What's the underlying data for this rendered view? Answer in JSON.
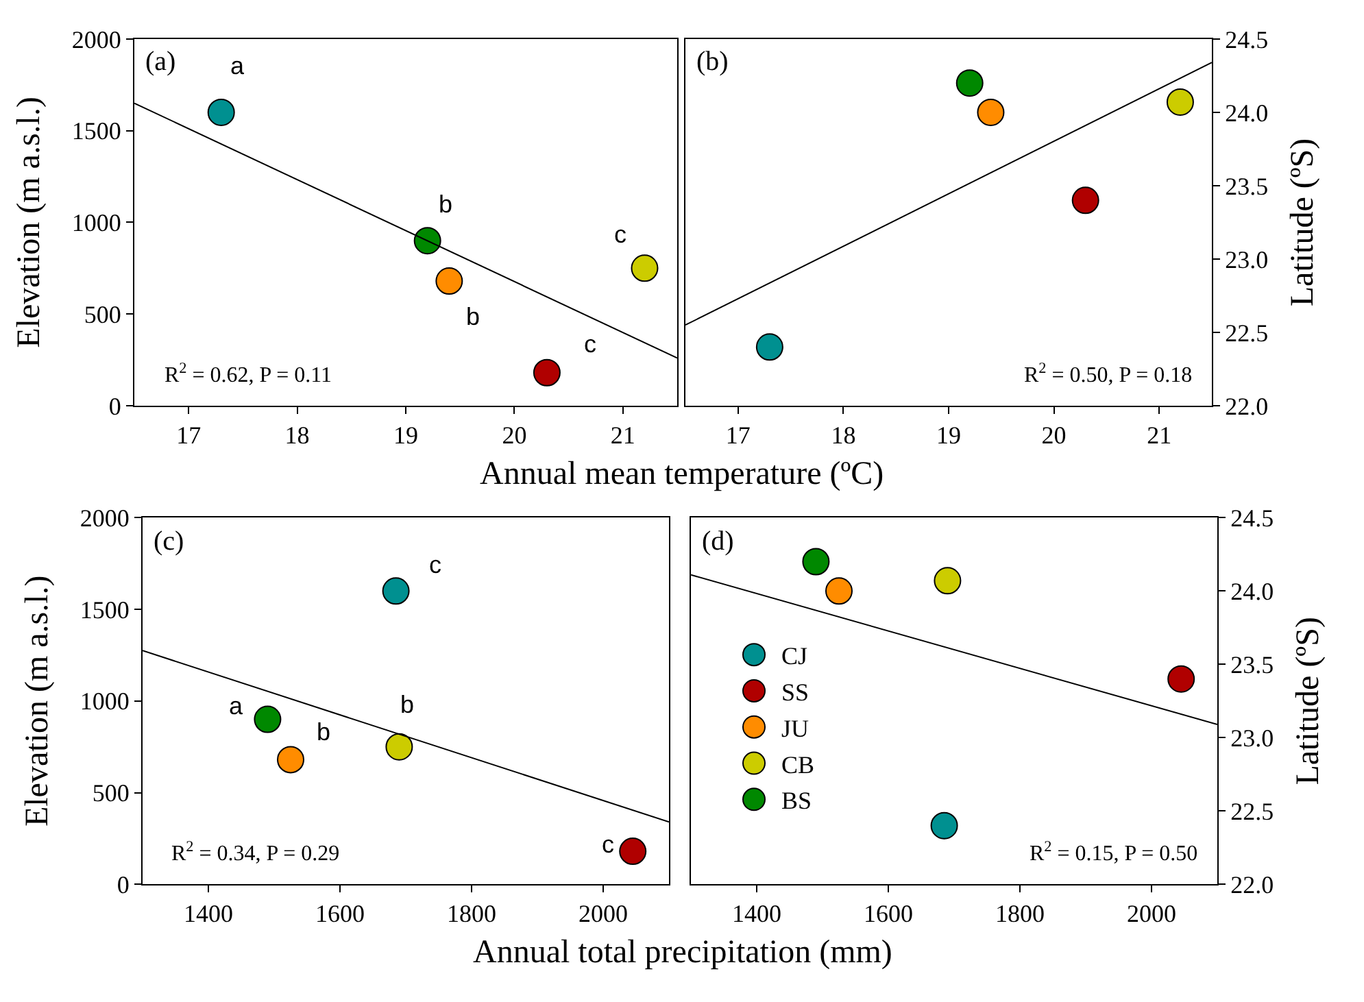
{
  "chart_data": [
    {
      "type": "scatter",
      "title": "(a)",
      "xlabel": "Annual mean temperature (ºC)",
      "ylabel": "Elevation (m a.s.l.)",
      "xlim": [
        16.5,
        21.5
      ],
      "xticks": [
        17,
        18,
        19,
        20,
        21
      ],
      "ylim": [
        0,
        2000
      ],
      "yticks": [
        0,
        500,
        1000,
        1500,
        2000
      ],
      "legend": false,
      "series": [
        {
          "color": "#009090",
          "marker": "circle",
          "x": [
            17.3
          ],
          "values": [
            1600
          ]
        },
        {
          "color": "#b00000",
          "marker": "circle",
          "x": [
            20.3
          ],
          "values": [
            180
          ]
        },
        {
          "color": "#ff8c00",
          "marker": "circle",
          "x": [
            19.4
          ],
          "values": [
            680
          ]
        },
        {
          "color": "#cccc00",
          "marker": "circle",
          "x": [
            21.2
          ],
          "values": [
            750
          ]
        },
        {
          "color": "#008800",
          "marker": "circle",
          "x": [
            19.2
          ],
          "values": [
            900
          ]
        },
        {
          "type": "line",
          "color": "#000000",
          "x": [
            16.5,
            21.5
          ],
          "values": [
            1650,
            260
          ]
        }
      ],
      "annotations": [
        "R$^{2}$ = 0.62, P = 0.11",
        {
          "text": "a",
          "x": 17.3,
          "y": 1600
        },
        {
          "text": "b",
          "x": 19.2,
          "y": 900
        },
        {
          "text": "b",
          "x": 19.4,
          "y": 680
        },
        {
          "text": "c",
          "x": 21.2,
          "y": 750
        },
        {
          "text": "c",
          "x": 20.3,
          "y": 180
        }
      ]
    },
    {
      "type": "scatter",
      "title": "(b)",
      "ylabel": "Latitude (ºS)",
      "xlim": [
        16.5,
        21.5
      ],
      "xticks": [
        17,
        18,
        19,
        20,
        21
      ],
      "ylim": [
        22.0,
        24.5
      ],
      "yticks": [
        {
          "value": 22.0,
          "label": "22.0"
        },
        {
          "value": 22.5,
          "label": "22.5"
        },
        {
          "value": 23.0,
          "label": "23.0"
        },
        {
          "value": 23.5,
          "label": "23.5"
        },
        {
          "value": 24.0,
          "label": "24.0"
        },
        {
          "value": 24.5,
          "label": "24.5"
        }
      ],
      "legend": false,
      "series": [
        {
          "color": "#009090",
          "marker": "circle",
          "x": [
            17.3
          ],
          "values": [
            22.4
          ]
        },
        {
          "color": "#b00000",
          "marker": "circle",
          "x": [
            20.3
          ],
          "values": [
            23.4
          ]
        },
        {
          "color": "#ff8c00",
          "marker": "circle",
          "x": [
            19.4
          ],
          "values": [
            24.0
          ]
        },
        {
          "color": "#cccc00",
          "marker": "circle",
          "x": [
            21.2
          ],
          "values": [
            24.07
          ]
        },
        {
          "color": "#008800",
          "marker": "circle",
          "x": [
            19.2
          ],
          "values": [
            24.2
          ]
        },
        {
          "type": "line",
          "color": "#000000",
          "x": [
            16.5,
            21.5
          ],
          "values": [
            22.55,
            24.34
          ]
        }
      ],
      "annotations": [
        "R$^{2}$ = 0.50, P = 0.18"
      ]
    },
    {
      "type": "scatter",
      "title": "(c)",
      "xlabel": "Annual total precipitation (mm)",
      "ylabel": "Elevation (m a.s.l.)",
      "xlim": [
        1300,
        2100
      ],
      "xticks": [
        1400,
        1600,
        1800,
        2000
      ],
      "ylim": [
        0,
        2000
      ],
      "yticks": [
        0,
        500,
        1000,
        1500,
        2000
      ],
      "legend": false,
      "series": [
        {
          "color": "#009090",
          "marker": "circle",
          "x": [
            1685
          ],
          "values": [
            1600
          ]
        },
        {
          "color": "#b00000",
          "marker": "circle",
          "x": [
            2045
          ],
          "values": [
            180
          ]
        },
        {
          "color": "#ff8c00",
          "marker": "circle",
          "x": [
            1525
          ],
          "values": [
            680
          ]
        },
        {
          "color": "#cccc00",
          "marker": "circle",
          "x": [
            1690
          ],
          "values": [
            750
          ]
        },
        {
          "color": "#008800",
          "marker": "circle",
          "x": [
            1490
          ],
          "values": [
            900
          ]
        },
        {
          "type": "line",
          "color": "#000000",
          "x": [
            1300,
            2100
          ],
          "values": [
            1275,
            340
          ]
        }
      ],
      "annotations": [
        "R$^{2}$ = 0.34, P = 0.29",
        {
          "text": "c",
          "x": 1685,
          "y": 1600
        },
        {
          "text": "a",
          "x": 1490,
          "y": 900
        },
        {
          "text": "b",
          "x": 1525,
          "y": 680
        },
        {
          "text": "b",
          "x": 1690,
          "y": 750
        },
        {
          "text": "c",
          "x": 2045,
          "y": 180
        }
      ]
    },
    {
      "type": "scatter",
      "title": "(d)",
      "ylabel": "Latitude (ºS)",
      "xlim": [
        1300,
        2100
      ],
      "xticks": [
        1400,
        1600,
        1800,
        2000
      ],
      "ylim": [
        22.0,
        24.5
      ],
      "yticks": [
        {
          "value": 22.0,
          "label": "22.0"
        },
        {
          "value": 22.5,
          "label": "22.5"
        },
        {
          "value": 23.0,
          "label": "23.0"
        },
        {
          "value": 23.5,
          "label": "23.5"
        },
        {
          "value": 24.0,
          "label": "24.0"
        },
        {
          "value": 24.5,
          "label": "24.5"
        }
      ],
      "legend": "bottom left",
      "series": [
        {
          "name": "CJ",
          "color": "#009090",
          "marker": "circle",
          "x": [
            1685
          ],
          "values": [
            22.4
          ]
        },
        {
          "name": "SS",
          "color": "#b00000",
          "marker": "circle",
          "x": [
            2045
          ],
          "values": [
            23.4
          ]
        },
        {
          "name": "JU",
          "color": "#ff8c00",
          "marker": "circle",
          "x": [
            1525
          ],
          "values": [
            24.0
          ]
        },
        {
          "name": "CB",
          "color": "#cccc00",
          "marker": "circle",
          "x": [
            1690
          ],
          "values": [
            24.07
          ]
        },
        {
          "name": "BS",
          "color": "#008800",
          "marker": "circle",
          "x": [
            1490
          ],
          "values": [
            24.2
          ]
        },
        {
          "type": "line",
          "color": "#000000",
          "x": [
            1300,
            2100
          ],
          "values": [
            24.11,
            23.09
          ]
        }
      ],
      "annotations": [
        "R$^{2}$ = 0.15, P = 0.50"
      ]
    }
  ]
}
